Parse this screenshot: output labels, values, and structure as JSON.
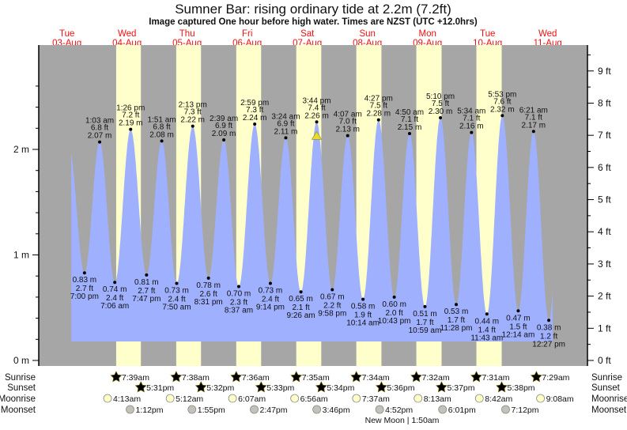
{
  "chart_data": {
    "type": "area",
    "title": "Sumner Bar: rising  ordinary tide at 2.2m (7.2ft)",
    "subtitle": "Image captured One hour before high water. Times are NZST (UTC +12.0hrs)",
    "days": [
      {
        "dow": "Tue",
        "date": "03-Aug"
      },
      {
        "dow": "Wed",
        "date": "04-Aug"
      },
      {
        "dow": "Thu",
        "date": "05-Aug"
      },
      {
        "dow": "Fri",
        "date": "06-Aug"
      },
      {
        "dow": "Sat",
        "date": "07-Aug"
      },
      {
        "dow": "Sun",
        "date": "08-Aug"
      },
      {
        "dow": "Mon",
        "date": "09-Aug"
      },
      {
        "dow": "Tue",
        "date": "10-Aug"
      },
      {
        "dow": "Wed",
        "date": "11-Aug"
      }
    ],
    "left_axis": {
      "unit": "m",
      "ticks": [
        "0 m",
        "1 m",
        "2 m"
      ],
      "range_m": [
        0,
        2.9
      ]
    },
    "right_axis": {
      "unit": "ft",
      "ticks": [
        "0 ft",
        "1 ft",
        "2 ft",
        "3 ft",
        "4 ft",
        "5 ft",
        "6 ft",
        "7 ft",
        "8 ft",
        "9 ft"
      ]
    },
    "extremes": [
      {
        "type": "low",
        "day": 0,
        "time": "7:00 pm",
        "m": "0.83 m",
        "ft": "2.7 ft",
        "value": 0.83
      },
      {
        "type": "high",
        "day": 1,
        "time": "1:03 am",
        "m": "2.07 m",
        "ft": "6.8 ft",
        "value": 2.07
      },
      {
        "type": "low",
        "day": 1,
        "time": "7:06 am",
        "m": "0.74 m",
        "ft": "2.4 ft",
        "value": 0.74
      },
      {
        "type": "high",
        "day": 1,
        "time": "1:26 pm",
        "m": "2.19 m",
        "ft": "7.2 ft",
        "value": 2.19
      },
      {
        "type": "low",
        "day": 1,
        "time": "7:47 pm",
        "m": "0.81 m",
        "ft": "2.7 ft",
        "value": 0.81
      },
      {
        "type": "high",
        "day": 2,
        "time": "1:51 am",
        "m": "2.08 m",
        "ft": "6.8 ft",
        "value": 2.08
      },
      {
        "type": "low",
        "day": 2,
        "time": "7:50 am",
        "m": "0.73 m",
        "ft": "2.4 ft",
        "value": 0.73
      },
      {
        "type": "high",
        "day": 2,
        "time": "2:13 pm",
        "m": "2.22 m",
        "ft": "7.3 ft",
        "value": 2.22
      },
      {
        "type": "low",
        "day": 2,
        "time": "8:31 pm",
        "m": "0.78 m",
        "ft": "2.6 ft",
        "value": 0.78
      },
      {
        "type": "high",
        "day": 3,
        "time": "2:39 am",
        "m": "2.09 m",
        "ft": "6.9 ft",
        "value": 2.09
      },
      {
        "type": "low",
        "day": 3,
        "time": "8:37 am",
        "m": "0.70 m",
        "ft": "2.3 ft",
        "value": 0.7
      },
      {
        "type": "high",
        "day": 3,
        "time": "2:59 pm",
        "m": "2.24 m",
        "ft": "7.3 ft",
        "value": 2.24
      },
      {
        "type": "low",
        "day": 3,
        "time": "9:14 pm",
        "m": "0.73 m",
        "ft": "2.4 ft",
        "value": 0.73
      },
      {
        "type": "high",
        "day": 4,
        "time": "3:24 am",
        "m": "2.11 m",
        "ft": "6.9 ft",
        "value": 2.11
      },
      {
        "type": "low",
        "day": 4,
        "time": "9:26 am",
        "m": "0.65 m",
        "ft": "2.1 ft",
        "value": 0.65
      },
      {
        "type": "high",
        "day": 4,
        "time": "3:44 pm",
        "m": "2.26 m",
        "ft": "7.4 ft",
        "value": 2.26,
        "current": true
      },
      {
        "type": "low",
        "day": 4,
        "time": "9:58 pm",
        "m": "0.67 m",
        "ft": "2.2 ft",
        "value": 0.67
      },
      {
        "type": "high",
        "day": 5,
        "time": "4:07 am",
        "m": "2.13 m",
        "ft": "7.0 ft",
        "value": 2.13
      },
      {
        "type": "low",
        "day": 5,
        "time": "10:14 am",
        "m": "0.58 m",
        "ft": "1.9 ft",
        "value": 0.58
      },
      {
        "type": "high",
        "day": 5,
        "time": "4:27 pm",
        "m": "2.28 m",
        "ft": "7.5 ft",
        "value": 2.28
      },
      {
        "type": "low",
        "day": 5,
        "time": "10:43 pm",
        "m": "0.60 m",
        "ft": "2.0 ft",
        "value": 0.6
      },
      {
        "type": "high",
        "day": 6,
        "time": "4:50 am",
        "m": "2.15 m",
        "ft": "7.1 ft",
        "value": 2.15
      },
      {
        "type": "low",
        "day": 6,
        "time": "10:59 am",
        "m": "0.51 m",
        "ft": "1.7 ft",
        "value": 0.51
      },
      {
        "type": "high",
        "day": 6,
        "time": "5:10 pm",
        "m": "2.30 m",
        "ft": "7.5 ft",
        "value": 2.3
      },
      {
        "type": "low",
        "day": 6,
        "time": "11:28 pm",
        "m": "0.53 m",
        "ft": "1.7 ft",
        "value": 0.53
      },
      {
        "type": "high",
        "day": 7,
        "time": "5:34 am",
        "m": "2.16 m",
        "ft": "7.1 ft",
        "value": 2.16
      },
      {
        "type": "low",
        "day": 7,
        "time": "11:43 am",
        "m": "0.44 m",
        "ft": "1.4 ft",
        "value": 0.44
      },
      {
        "type": "high",
        "day": 7,
        "time": "5:53 pm",
        "m": "2.32 m",
        "ft": "7.6 ft",
        "value": 2.32
      },
      {
        "type": "low",
        "day": 8,
        "time": "12:14 am",
        "m": "0.47 m",
        "ft": "1.5 ft",
        "value": 0.47
      },
      {
        "type": "high",
        "day": 8,
        "time": "6:21 am",
        "m": "2.17 m",
        "ft": "7.1 ft",
        "value": 2.17
      },
      {
        "type": "low",
        "day": 8,
        "time": "12:27 pm",
        "m": "0.38 m",
        "ft": "1.2 ft",
        "value": 0.38
      }
    ],
    "rows": {
      "sunrise": {
        "label": "Sunrise",
        "events": [
          {
            "day": 1,
            "time": "7:39am"
          },
          {
            "day": 2,
            "time": "7:38am"
          },
          {
            "day": 3,
            "time": "7:36am"
          },
          {
            "day": 4,
            "time": "7:35am"
          },
          {
            "day": 5,
            "time": "7:34am"
          },
          {
            "day": 6,
            "time": "7:32am"
          },
          {
            "day": 7,
            "time": "7:31am"
          },
          {
            "day": 8,
            "time": "7:29am"
          }
        ]
      },
      "sunset": {
        "label": "Sunset",
        "events": [
          {
            "day": 1,
            "time": "5:31pm"
          },
          {
            "day": 2,
            "time": "5:32pm"
          },
          {
            "day": 3,
            "time": "5:33pm"
          },
          {
            "day": 4,
            "time": "5:34pm"
          },
          {
            "day": 5,
            "time": "5:36pm"
          },
          {
            "day": 6,
            "time": "5:37pm"
          },
          {
            "day": 7,
            "time": "5:38pm"
          }
        ]
      },
      "moonrise": {
        "label": "Moonrise",
        "events": [
          {
            "day": 1,
            "time": "4:13am"
          },
          {
            "day": 2,
            "time": "5:12am"
          },
          {
            "day": 3,
            "time": "6:07am"
          },
          {
            "day": 4,
            "time": "6:56am"
          },
          {
            "day": 5,
            "time": "7:37am"
          },
          {
            "day": 6,
            "time": "8:13am"
          },
          {
            "day": 7,
            "time": "8:42am"
          },
          {
            "day": 8,
            "time": "9:08am"
          }
        ]
      },
      "moonset": {
        "label": "Moonset",
        "events": [
          {
            "day": 1,
            "time": "1:12pm"
          },
          {
            "day": 2,
            "time": "1:55pm"
          },
          {
            "day": 3,
            "time": "2:47pm"
          },
          {
            "day": 4,
            "time": "3:46pm"
          },
          {
            "day": 5,
            "time": "4:52pm"
          },
          {
            "day": 6,
            "time": "6:01pm"
          },
          {
            "day": 7,
            "time": "7:12pm"
          }
        ]
      }
    },
    "moon_phase": {
      "label": "New Moon | 1:50am",
      "day": 6,
      "time": "1:50am"
    }
  },
  "colors": {
    "night": "#a6a6a6",
    "day": "#ffffcc",
    "water": "#9fb0ff",
    "day_label": "#ee1111",
    "sunrise": "#d8d030",
    "sunset": "#d86a28",
    "moonrise": "#ffffc8",
    "moonset": "#c4c2b8",
    "marker": "#e8d830"
  }
}
